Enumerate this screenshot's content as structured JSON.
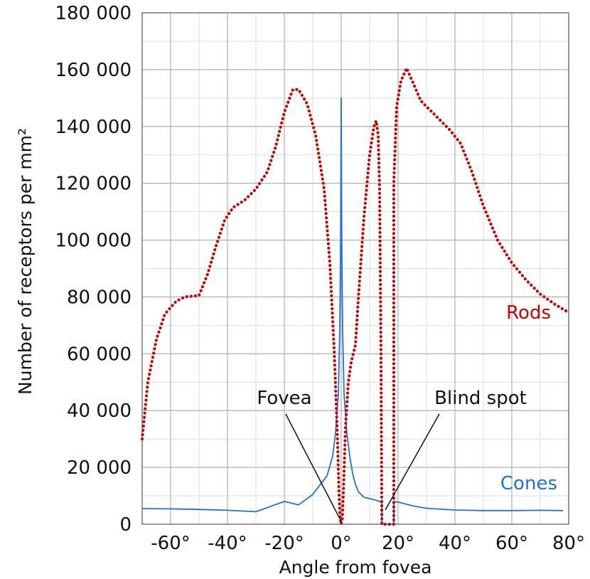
{
  "chart_data": {
    "type": "line",
    "title": "",
    "xlabel": "Angle from fovea",
    "ylabel": "Number of receptors per mm²",
    "xlim": [
      -70,
      80
    ],
    "ylim": [
      0,
      180000
    ],
    "grid": true,
    "x_ticks": [
      {
        "value": -60,
        "label": "-60°"
      },
      {
        "value": -40,
        "label": "-40°"
      },
      {
        "value": -20,
        "label": "-20°"
      },
      {
        "value": 0,
        "label": "0°"
      },
      {
        "value": 20,
        "label": "20°"
      },
      {
        "value": 40,
        "label": "40°"
      },
      {
        "value": 60,
        "label": "60°"
      },
      {
        "value": 80,
        "label": "80°"
      }
    ],
    "y_ticks": [
      {
        "value": 0,
        "label": "0"
      },
      {
        "value": 20000,
        "label": "20 000"
      },
      {
        "value": 40000,
        "label": "40 000"
      },
      {
        "value": 60000,
        "label": "60 000"
      },
      {
        "value": 80000,
        "label": "80 000"
      },
      {
        "value": 100000,
        "label": "100 000"
      },
      {
        "value": 120000,
        "label": "120 000"
      },
      {
        "value": 140000,
        "label": "140 000"
      },
      {
        "value": 160000,
        "label": "160 000"
      },
      {
        "value": 180000,
        "label": "180 000"
      }
    ],
    "series": [
      {
        "name": "Rods",
        "color": "#cc0000",
        "style": "dotted",
        "points": [
          [
            -70,
            30000
          ],
          [
            -68,
            50000
          ],
          [
            -65,
            65000
          ],
          [
            -62,
            74000
          ],
          [
            -58,
            78500
          ],
          [
            -55,
            80000
          ],
          [
            -50,
            80500
          ],
          [
            -47,
            88000
          ],
          [
            -44,
            98000
          ],
          [
            -41,
            107000
          ],
          [
            -38,
            111500
          ],
          [
            -34,
            114000
          ],
          [
            -30,
            118000
          ],
          [
            -26,
            124000
          ],
          [
            -23,
            133000
          ],
          [
            -20,
            145000
          ],
          [
            -17,
            153000
          ],
          [
            -15,
            153000
          ],
          [
            -12,
            148000
          ],
          [
            -9,
            137000
          ],
          [
            -6,
            118000
          ],
          [
            -4,
            92000
          ],
          [
            -2.5,
            62000
          ],
          [
            -1.3,
            30000
          ],
          [
            -0.8,
            12000
          ],
          [
            -0.4,
            2000
          ],
          [
            0,
            0
          ],
          [
            0.4,
            2000
          ],
          [
            0.8,
            12000
          ],
          [
            1.5,
            34000
          ],
          [
            2.5,
            50000
          ],
          [
            3.5,
            57000
          ],
          [
            5,
            63000
          ],
          [
            6,
            79000
          ],
          [
            8,
            108000
          ],
          [
            10,
            130000
          ],
          [
            11.5,
            140000
          ],
          [
            12.3,
            142000
          ],
          [
            13,
            137000
          ],
          [
            13.5,
            118000
          ],
          [
            14,
            60000
          ],
          [
            14.3,
            0
          ],
          [
            18.5,
            0
          ],
          [
            18.5,
            120000
          ],
          [
            19.5,
            147000
          ],
          [
            21,
            156000
          ],
          [
            23,
            160500
          ],
          [
            25,
            156000
          ],
          [
            28,
            149000
          ],
          [
            33,
            144000
          ],
          [
            38,
            139000
          ],
          [
            42,
            134000
          ],
          [
            46,
            124000
          ],
          [
            50,
            112000
          ],
          [
            55,
            100000
          ],
          [
            60,
            92000
          ],
          [
            65,
            86000
          ],
          [
            70,
            81000
          ],
          [
            75,
            77500
          ],
          [
            80,
            74500
          ]
        ]
      },
      {
        "name": "Cones",
        "color": "#2272d6",
        "style": "solid",
        "points": [
          [
            -70,
            5500
          ],
          [
            -60,
            5400
          ],
          [
            -50,
            5200
          ],
          [
            -40,
            4900
          ],
          [
            -30,
            4400
          ],
          [
            -25,
            6200
          ],
          [
            -20,
            8000
          ],
          [
            -15,
            6800
          ],
          [
            -10,
            10500
          ],
          [
            -5,
            17000
          ],
          [
            -3,
            24000
          ],
          [
            -2,
            32000
          ],
          [
            -1,
            46000
          ],
          [
            -0.5,
            68000
          ],
          [
            -0.2,
            100000
          ],
          [
            0,
            150000
          ],
          [
            0.2,
            100000
          ],
          [
            0.5,
            68000
          ],
          [
            1,
            46000
          ],
          [
            2,
            32000
          ],
          [
            3,
            24000
          ],
          [
            4,
            18000
          ],
          [
            5,
            14000
          ],
          [
            6,
            11500
          ],
          [
            8,
            9500
          ],
          [
            10,
            9000
          ],
          [
            12,
            8500
          ],
          [
            13.5,
            8000
          ],
          [
            14.3,
            7500
          ],
          [
            14.3,
            0
          ],
          [
            18.5,
            0
          ],
          [
            18.5,
            8000
          ],
          [
            20,
            7800
          ],
          [
            25,
            6500
          ],
          [
            30,
            5600
          ],
          [
            40,
            5000
          ],
          [
            50,
            4800
          ],
          [
            60,
            4800
          ],
          [
            70,
            4900
          ],
          [
            78,
            4800
          ]
        ]
      }
    ],
    "series_labels": [
      {
        "name": "Rods",
        "text": "Rods"
      },
      {
        "name": "Cones",
        "text": "Cones"
      }
    ],
    "annotations": [
      {
        "text": "Fovea",
        "points_to": [
          0,
          0
        ]
      },
      {
        "text": "Blind spot",
        "points_to": [
          16,
          5000
        ]
      }
    ]
  }
}
